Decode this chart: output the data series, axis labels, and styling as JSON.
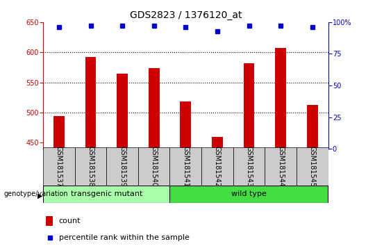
{
  "title": "GDS2823 / 1376120_at",
  "samples": [
    "GSM181537",
    "GSM181538",
    "GSM181539",
    "GSM181540",
    "GSM181541",
    "GSM181542",
    "GSM181543",
    "GSM181544",
    "GSM181545"
  ],
  "counts": [
    494,
    592,
    565,
    574,
    518,
    460,
    582,
    607,
    513
  ],
  "percentile_ranks": [
    96,
    97,
    97,
    97,
    96,
    93,
    97,
    97,
    96
  ],
  "ylim_left": [
    440,
    650
  ],
  "ylim_right": [
    0,
    100
  ],
  "yticks_left": [
    450,
    500,
    550,
    600,
    650
  ],
  "yticks_right": [
    0,
    25,
    50,
    75,
    100
  ],
  "bar_color": "#cc0000",
  "dot_color": "#0000cc",
  "group1_label": "transgenic mutant",
  "group2_label": "wild type",
  "group1_indices": [
    0,
    1,
    2,
    3
  ],
  "group2_indices": [
    4,
    5,
    6,
    7,
    8
  ],
  "group1_color": "#aaffaa",
  "group2_color": "#44dd44",
  "ylabel_left_color": "#cc0000",
  "ylabel_right_color": "#0000cc",
  "grid_color": "#000000",
  "background_label": "#cccccc",
  "legend_count_color": "#cc0000",
  "legend_dot_color": "#0000cc",
  "bar_width": 0.35,
  "gridlines": [
    500,
    550,
    600
  ],
  "title_fontsize": 10,
  "tick_fontsize": 7,
  "label_fontsize": 7,
  "group_fontsize": 8
}
